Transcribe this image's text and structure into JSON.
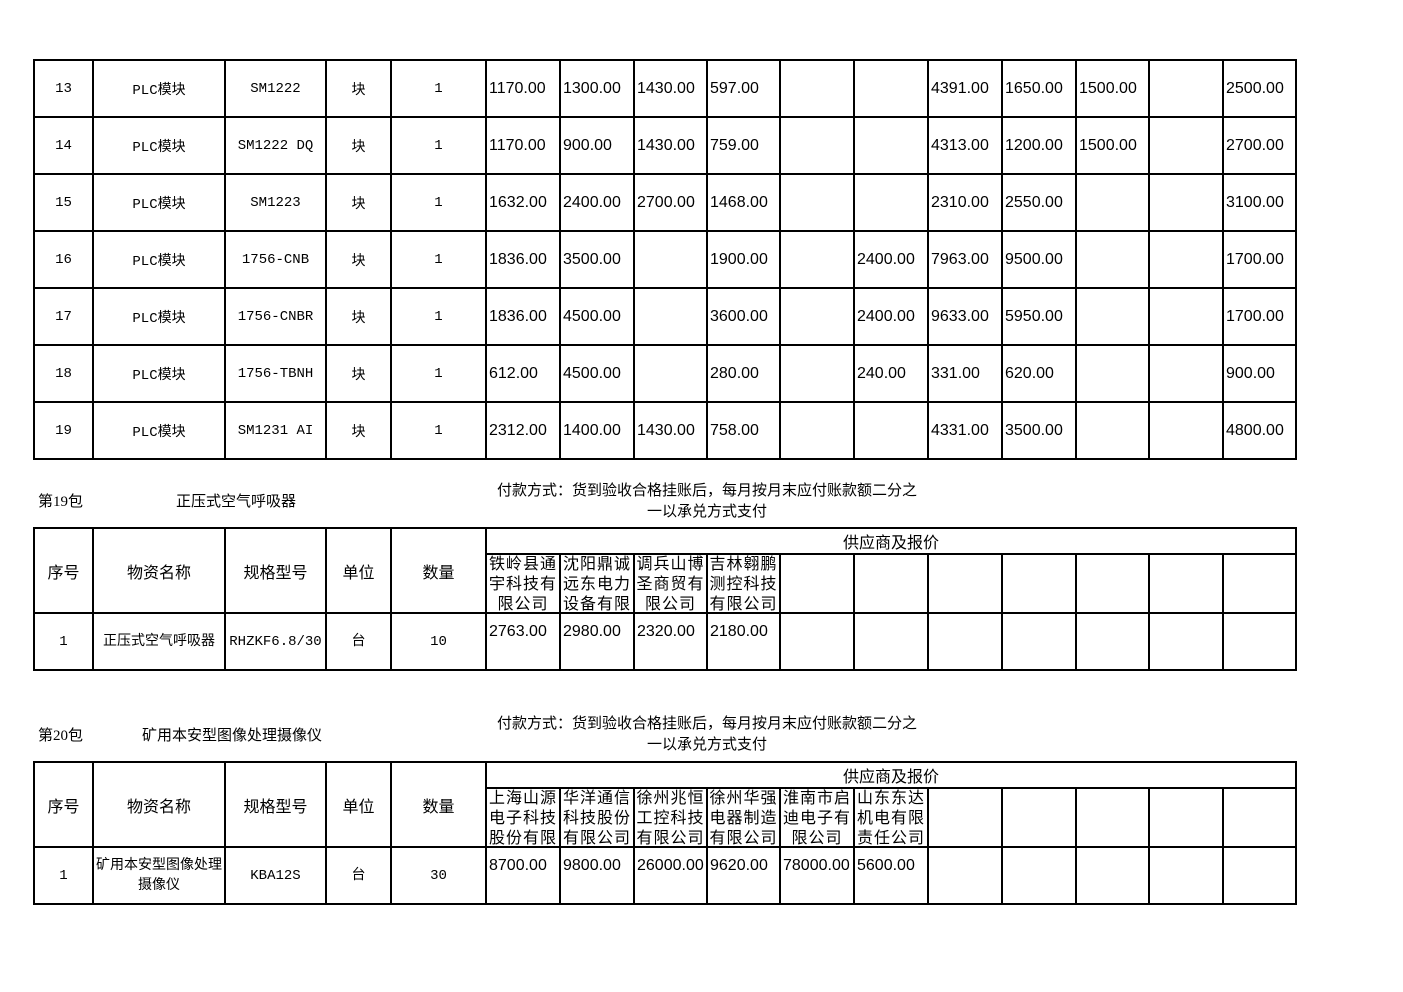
{
  "table1": {
    "rows": [
      {
        "no": "13",
        "name": "PLC模块",
        "spec": "SM1222",
        "unit": "块",
        "qty": "1",
        "prices": [
          "1170.00",
          "1300.00",
          "1430.00",
          "597.00",
          "",
          "",
          "4391.00",
          "1650.00",
          "1500.00",
          "",
          "2500.00"
        ]
      },
      {
        "no": "14",
        "name": "PLC模块",
        "spec": "SM1222 DQ",
        "unit": "块",
        "qty": "1",
        "prices": [
          "1170.00",
          "900.00",
          "1430.00",
          "759.00",
          "",
          "",
          "4313.00",
          "1200.00",
          "1500.00",
          "",
          "2700.00"
        ]
      },
      {
        "no": "15",
        "name": "PLC模块",
        "spec": "SM1223",
        "unit": "块",
        "qty": "1",
        "prices": [
          "1632.00",
          "2400.00",
          "2700.00",
          "1468.00",
          "",
          "",
          "2310.00",
          "2550.00",
          "",
          "",
          "3100.00"
        ]
      },
      {
        "no": "16",
        "name": "PLC模块",
        "spec": "1756-CNB",
        "unit": "块",
        "qty": "1",
        "prices": [
          "1836.00",
          "3500.00",
          "",
          "1900.00",
          "",
          "2400.00",
          "7963.00",
          "9500.00",
          "",
          "",
          "1700.00"
        ]
      },
      {
        "no": "17",
        "name": "PLC模块",
        "spec": "1756-CNBR",
        "unit": "块",
        "qty": "1",
        "prices": [
          "1836.00",
          "4500.00",
          "",
          "3600.00",
          "",
          "2400.00",
          "9633.00",
          "5950.00",
          "",
          "",
          "1700.00"
        ]
      },
      {
        "no": "18",
        "name": "PLC模块",
        "spec": "1756-TBNH",
        "unit": "块",
        "qty": "1",
        "prices": [
          "612.00",
          "4500.00",
          "",
          "280.00",
          "",
          "240.00",
          "331.00",
          "620.00",
          "",
          "",
          "900.00"
        ]
      },
      {
        "no": "19",
        "name": "PLC模块",
        "spec": "SM1231 AI",
        "unit": "块",
        "qty": "1",
        "prices": [
          "2312.00",
          "1400.00",
          "1430.00",
          "758.00",
          "",
          "",
          "4331.00",
          "3500.00",
          "",
          "",
          "4800.00"
        ]
      }
    ]
  },
  "headers": {
    "no": "序号",
    "name": "物资名称",
    "spec": "规格型号",
    "unit": "单位",
    "qty": "数量",
    "suppliers": "供应商及报价"
  },
  "packages": [
    {
      "label": "第19包",
      "title": "正压式空气呼吸器",
      "payment": "付款方式：货到验收合格挂账后，每月按月末应付账款额二分之一以承兑方式支付",
      "suppliers": [
        "铁岭县通宇科技有限公司",
        "沈阳鼎诚远东电力设备有限",
        "调兵山博圣商贸有限公司",
        "吉林翱鹏测控科技有限公司",
        "",
        "",
        "",
        "",
        "",
        "",
        ""
      ],
      "row": {
        "no": "1",
        "name": "正压式空气呼吸器",
        "spec": "RHZKF6.8/30",
        "unit": "台",
        "qty": "10",
        "prices": [
          "2763.00",
          "2980.00",
          "2320.00",
          "2180.00",
          "",
          "",
          "",
          "",
          "",
          "",
          ""
        ]
      }
    },
    {
      "label": "第20包",
      "title": "矿用本安型图像处理摄像仪",
      "payment": "付款方式：货到验收合格挂账后，每月按月末应付账款额二分之一以承兑方式支付",
      "suppliers": [
        "上海山源电子科技股份有限",
        "华洋通信科技股份有限公司",
        "徐州兆恒工控科技有限公司",
        "徐州华强电器制造有限公司",
        "淮南市启迪电子有限公司",
        "山东东达机电有限责任公司",
        "",
        "",
        "",
        "",
        ""
      ],
      "row": {
        "no": "1",
        "name": "矿用本安型图像处理摄像仪",
        "spec": "KBA12S",
        "unit": "台",
        "qty": "30",
        "prices": [
          "8700.00",
          "9800.00",
          "26000.00",
          "9620.00",
          "78000.00",
          "5600.00",
          "",
          "",
          "",
          "",
          ""
        ]
      }
    }
  ]
}
